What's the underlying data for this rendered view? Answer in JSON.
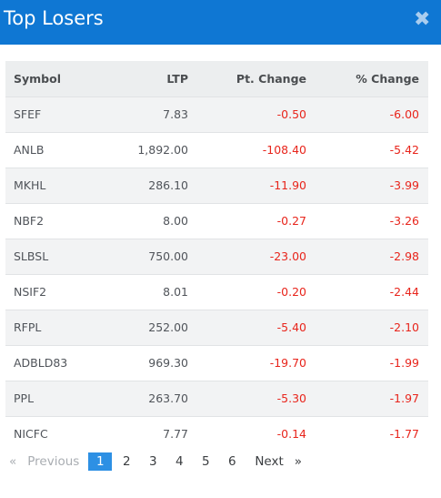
{
  "modal": {
    "title": "Top Losers",
    "close_icon": "close-icon",
    "header_color": "#0f77d3"
  },
  "table": {
    "headers": {
      "symbol": "Symbol",
      "ltp": "LTP",
      "pt_change": "Pt. Change",
      "pct_change": "% Change"
    },
    "rows": [
      {
        "symbol": "SFEF",
        "ltp": "7.83",
        "pt_change": "-0.50",
        "pct_change": "-6.00"
      },
      {
        "symbol": "ANLB",
        "ltp": "1,892.00",
        "pt_change": "-108.40",
        "pct_change": "-5.42"
      },
      {
        "symbol": "MKHL",
        "ltp": "286.10",
        "pt_change": "-11.90",
        "pct_change": "-3.99"
      },
      {
        "symbol": "NBF2",
        "ltp": "8.00",
        "pt_change": "-0.27",
        "pct_change": "-3.26"
      },
      {
        "symbol": "SLBSL",
        "ltp": "750.00",
        "pt_change": "-23.00",
        "pct_change": "-2.98"
      },
      {
        "symbol": "NSIF2",
        "ltp": "8.01",
        "pt_change": "-0.20",
        "pct_change": "-2.44"
      },
      {
        "symbol": "RFPL",
        "ltp": "252.00",
        "pt_change": "-5.40",
        "pct_change": "-2.10"
      },
      {
        "symbol": "ADBLD83",
        "ltp": "969.30",
        "pt_change": "-19.70",
        "pct_change": "-1.99"
      },
      {
        "symbol": "PPL",
        "ltp": "263.70",
        "pt_change": "-5.30",
        "pct_change": "-1.97"
      },
      {
        "symbol": "NICFC",
        "ltp": "7.77",
        "pt_change": "-0.14",
        "pct_change": "-1.77"
      }
    ],
    "negative_color": "#e8251c"
  },
  "pagination": {
    "prev_arrow": "«",
    "prev_label": "Previous",
    "pages": [
      "1",
      "2",
      "3",
      "4",
      "5",
      "6"
    ],
    "active_page": "1",
    "next_label": "Next",
    "next_arrow": "»"
  }
}
